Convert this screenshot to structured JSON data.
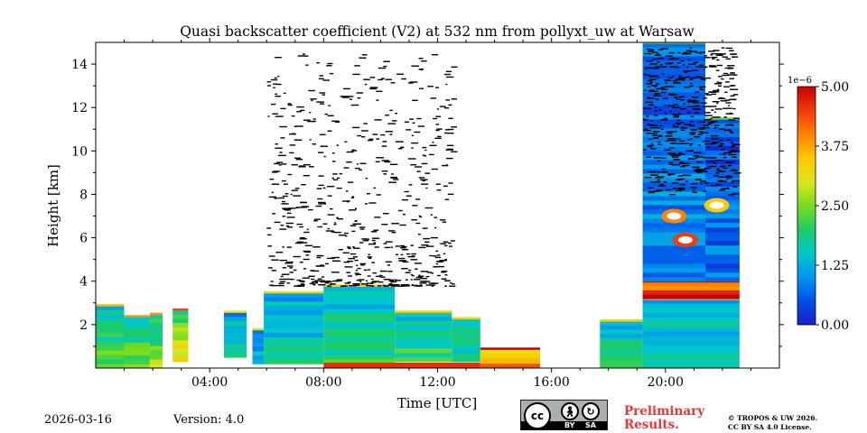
{
  "chart_data": {
    "type": "heatmap",
    "title": "Quasi backscatter coefficient (V2) at 532 nm from pollyxt_uw at Warsaw",
    "xlabel": "Time [UTC]",
    "ylabel": "Height [km]",
    "x_range_hours": [
      0,
      24
    ],
    "y_range_km": [
      0,
      15
    ],
    "x_ticks": [
      {
        "value": 4,
        "label": "04:00"
      },
      {
        "value": 8,
        "label": "08:00"
      },
      {
        "value": 12,
        "label": "12:00"
      },
      {
        "value": 16,
        "label": "16:00"
      },
      {
        "value": 20,
        "label": "20:00"
      }
    ],
    "y_ticks": [
      {
        "value": 2,
        "label": "2"
      },
      {
        "value": 4,
        "label": "4"
      },
      {
        "value": 6,
        "label": "6"
      },
      {
        "value": 8,
        "label": "8"
      },
      {
        "value": 10,
        "label": "10"
      },
      {
        "value": 12,
        "label": "12"
      },
      {
        "value": 14,
        "label": "14"
      }
    ],
    "colorbar": {
      "range": [
        0.0,
        5.0
      ],
      "multiplier": "1e−6",
      "ticks": [
        {
          "value": 0.0,
          "label": "0.00"
        },
        {
          "value": 1.25,
          "label": "1.25"
        },
        {
          "value": 2.5,
          "label": "2.50"
        },
        {
          "value": 3.75,
          "label": "3.75"
        },
        {
          "value": 5.0,
          "label": "5.00"
        }
      ],
      "colormap": [
        "#1e1ec8",
        "#0050e6",
        "#0096f0",
        "#00c8c8",
        "#1ecc64",
        "#78dc1e",
        "#dce61e",
        "#ffc800",
        "#ff8200",
        "#f03c0a",
        "#c80000"
      ]
    },
    "segments": [
      {
        "t0": 0.0,
        "t1": 1.0,
        "z0": 0.0,
        "z1": 2.9,
        "level": 1.8
      },
      {
        "t0": 1.0,
        "t1": 1.9,
        "z0": 0.0,
        "z1": 2.4,
        "level": 2.0
      },
      {
        "t0": 1.9,
        "t1": 2.35,
        "z0": 0.0,
        "z1": 2.5,
        "level": 2.1
      },
      {
        "t0": 2.7,
        "t1": 3.25,
        "z0": 0.3,
        "z1": 2.7,
        "level": 2.6
      },
      {
        "t0": 4.5,
        "t1": 5.3,
        "z0": 0.5,
        "z1": 2.6,
        "level": 1.4
      },
      {
        "t0": 5.5,
        "t1": 5.9,
        "z0": 0.2,
        "z1": 1.8,
        "level": 1.2
      },
      {
        "t0": 5.9,
        "t1": 8.0,
        "z0": 0.2,
        "z1": 3.5,
        "level": 1.4
      },
      {
        "t0": 8.0,
        "t1": 10.5,
        "z0": 0.2,
        "z1": 3.8,
        "level": 1.6
      },
      {
        "t0": 10.5,
        "t1": 12.5,
        "z0": 0.3,
        "z1": 2.6,
        "level": 1.7
      },
      {
        "t0": 12.5,
        "t1": 13.5,
        "z0": 0.3,
        "z1": 2.3,
        "level": 1.6
      },
      {
        "t0": 13.5,
        "t1": 15.6,
        "z0": 0.0,
        "z1": 0.9,
        "level": 3.6
      },
      {
        "t0": 17.7,
        "t1": 19.2,
        "z0": 0.0,
        "z1": 2.2,
        "level": 1.6
      },
      {
        "t0": 19.2,
        "t1": 22.6,
        "z0": 0.0,
        "z1": 3.2,
        "level": 1.4
      },
      {
        "t0": 19.2,
        "t1": 22.6,
        "z0": 3.2,
        "z1": 4.0,
        "level": 4.2
      },
      {
        "t0": 19.2,
        "t1": 21.4,
        "z0": 4.0,
        "z1": 15.0,
        "level": 0.8
      },
      {
        "t0": 21.4,
        "t1": 22.6,
        "z0": 4.0,
        "z1": 11.5,
        "level": 0.6
      }
    ],
    "clouds": [
      {
        "t0": 6.0,
        "t1": 12.5,
        "z0": 3.8,
        "z1": 14.5,
        "note": "sparse black (saturated) cloud returns"
      },
      {
        "t0": 19.2,
        "t1": 22.4,
        "z0": 8.0,
        "z1": 14.8,
        "note": "dense cirrus returns"
      }
    ],
    "hot_spots": [
      {
        "t": 20.7,
        "z": 5.9,
        "level": 4.5
      },
      {
        "t": 20.3,
        "z": 7.0,
        "level": 4.0
      },
      {
        "t": 21.8,
        "z": 7.5,
        "level": 3.5
      }
    ]
  },
  "footer": {
    "date": "2026-03-16",
    "version": "Version: 4.0",
    "cc_by": "BY",
    "cc_sa": "SA",
    "preliminary_line1": "Preliminary",
    "preliminary_line2": "Results.",
    "license_line1": "© TROPOS & UW 2026.",
    "license_line2": "CC BY SA 4.0 License."
  }
}
